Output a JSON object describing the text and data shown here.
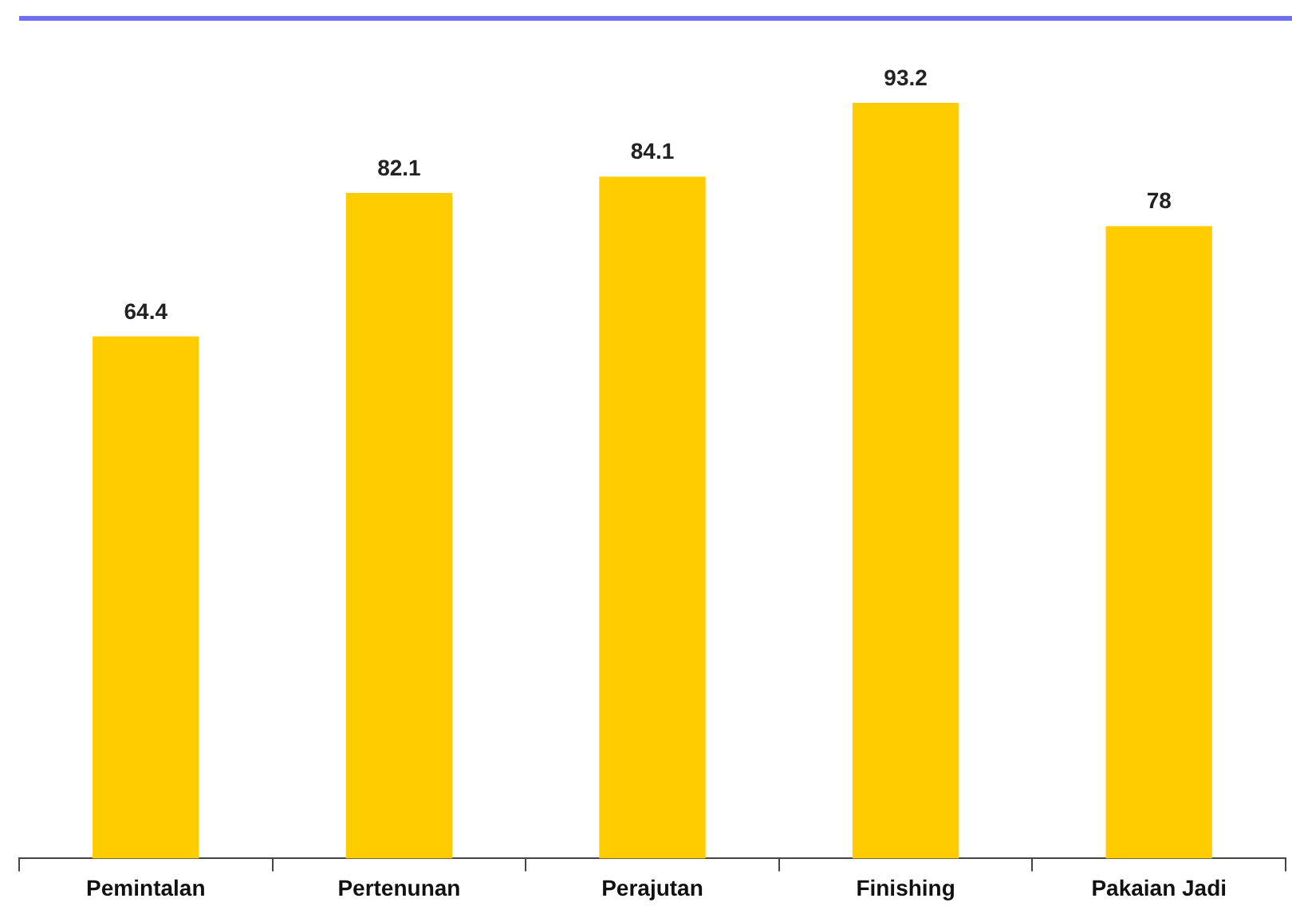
{
  "chart_data": {
    "type": "bar",
    "categories": [
      "Pemintalan",
      "Pertenunan",
      "Perajutan",
      "Finishing",
      "Pakaian Jadi"
    ],
    "values": [
      64.4,
      82.1,
      84.1,
      93.2,
      78
    ],
    "color": "#ffcc00",
    "data_labels": true,
    "tick_labels": "x",
    "grid": false,
    "legend": false
  }
}
